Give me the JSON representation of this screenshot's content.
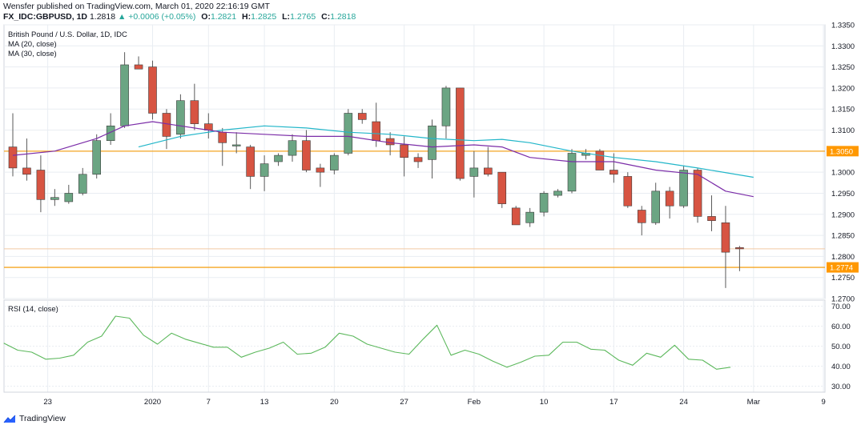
{
  "header": {
    "publisher_line": "Wensfer published on TradingView.com, March 01, 2020 22:16:19 GMT",
    "symbol": "FX_IDC:GBPUSD, 1D",
    "last": "1.2818",
    "change": "▲ +0.0006 (+0.05%)",
    "o_label": "O:",
    "o_val": "1.2821",
    "h_label": "H:",
    "h_val": "1.2825",
    "l_label": "L:",
    "l_val": "1.2765",
    "c_label": "C:",
    "c_val": "1.2818"
  },
  "legend": {
    "title": "British Pound / U.S. Dollar, 1D, IDC",
    "ma20": "MA (20, close)",
    "ma30": "MA (30, close)",
    "rsi": "RSI (14, close)"
  },
  "footer": {
    "brand": "TradingView"
  },
  "colors": {
    "up": "#6ba583",
    "down": "#d75442",
    "ma20": "#7b2da8",
    "ma30": "#22b6c9",
    "rsi": "#5cb85c",
    "level": "#f5a623",
    "label_bg": "#ff9800",
    "grid": "#e9edf2"
  },
  "chart_data": [
    {
      "type": "candlestick",
      "title": "British Pound / U.S. Dollar, 1D, IDC",
      "ylim": [
        1.27,
        1.335
      ],
      "y_ticks": [
        "1.3350",
        "1.3300",
        "1.3250",
        "1.3200",
        "1.3150",
        "1.3100",
        "1.3050",
        "1.3000",
        "1.2950",
        "1.2900",
        "1.2850",
        "1.2800",
        "1.2750",
        "1.2700"
      ],
      "x_ticks": [
        {
          "label": "23",
          "idx": 2.5
        },
        {
          "label": "2020",
          "idx": 10
        },
        {
          "label": "7",
          "idx": 14
        },
        {
          "label": "13",
          "idx": 18
        },
        {
          "label": "20",
          "idx": 23
        },
        {
          "label": "27",
          "idx": 28
        },
        {
          "label": "Feb",
          "idx": 33
        },
        {
          "label": "10",
          "idx": 38
        },
        {
          "label": "17",
          "idx": 43
        },
        {
          "label": "24",
          "idx": 48
        },
        {
          "label": "Mar",
          "idx": 53
        },
        {
          "label": "9",
          "idx": 58
        }
      ],
      "candles": [
        {
          "o": 1.306,
          "h": 1.314,
          "l": 1.299,
          "c": 1.301
        },
        {
          "o": 1.301,
          "h": 1.308,
          "l": 1.298,
          "c": 1.2995
        },
        {
          "o": 1.3005,
          "h": 1.304,
          "l": 1.2905,
          "c": 1.2935
        },
        {
          "o": 1.2935,
          "h": 1.296,
          "l": 1.292,
          "c": 1.294
        },
        {
          "o": 1.293,
          "h": 1.297,
          "l": 1.2925,
          "c": 1.295
        },
        {
          "o": 1.295,
          "h": 1.301,
          "l": 1.2945,
          "c": 1.2995
        },
        {
          "o": 1.2995,
          "h": 1.309,
          "l": 1.2985,
          "c": 1.3075
        },
        {
          "o": 1.3075,
          "h": 1.314,
          "l": 1.3065,
          "c": 1.311
        },
        {
          "o": 1.311,
          "h": 1.3285,
          "l": 1.3105,
          "c": 1.3255
        },
        {
          "o": 1.3255,
          "h": 1.3275,
          "l": 1.3245,
          "c": 1.3245
        },
        {
          "o": 1.325,
          "h": 1.3265,
          "l": 1.3125,
          "c": 1.314
        },
        {
          "o": 1.314,
          "h": 1.315,
          "l": 1.3055,
          "c": 1.3085
        },
        {
          "o": 1.309,
          "h": 1.3185,
          "l": 1.308,
          "c": 1.317
        },
        {
          "o": 1.317,
          "h": 1.321,
          "l": 1.31,
          "c": 1.3115
        },
        {
          "o": 1.3115,
          "h": 1.314,
          "l": 1.308,
          "c": 1.31
        },
        {
          "o": 1.3095,
          "h": 1.3105,
          "l": 1.3015,
          "c": 1.307
        },
        {
          "o": 1.3065,
          "h": 1.3095,
          "l": 1.3045,
          "c": 1.3065
        },
        {
          "o": 1.306,
          "h": 1.3065,
          "l": 1.296,
          "c": 1.299
        },
        {
          "o": 1.299,
          "h": 1.304,
          "l": 1.2955,
          "c": 1.302
        },
        {
          "o": 1.3025,
          "h": 1.3045,
          "l": 1.3015,
          "c": 1.304
        },
        {
          "o": 1.304,
          "h": 1.309,
          "l": 1.3025,
          "c": 1.3075
        },
        {
          "o": 1.3075,
          "h": 1.31,
          "l": 1.3,
          "c": 1.3005
        },
        {
          "o": 1.301,
          "h": 1.302,
          "l": 1.2965,
          "c": 1.3
        },
        {
          "o": 1.3005,
          "h": 1.3045,
          "l": 1.2995,
          "c": 1.304
        },
        {
          "o": 1.3045,
          "h": 1.315,
          "l": 1.304,
          "c": 1.314
        },
        {
          "o": 1.314,
          "h": 1.315,
          "l": 1.3115,
          "c": 1.3125
        },
        {
          "o": 1.312,
          "h": 1.3165,
          "l": 1.306,
          "c": 1.3075
        },
        {
          "o": 1.308,
          "h": 1.3095,
          "l": 1.304,
          "c": 1.3065
        },
        {
          "o": 1.3065,
          "h": 1.3085,
          "l": 1.299,
          "c": 1.3035
        },
        {
          "o": 1.3035,
          "h": 1.3045,
          "l": 1.301,
          "c": 1.3025
        },
        {
          "o": 1.303,
          "h": 1.3125,
          "l": 1.2985,
          "c": 1.311
        },
        {
          "o": 1.311,
          "h": 1.3205,
          "l": 1.308,
          "c": 1.32
        },
        {
          "o": 1.32,
          "h": 1.32,
          "l": 1.298,
          "c": 1.2985
        },
        {
          "o": 1.299,
          "h": 1.305,
          "l": 1.294,
          "c": 1.301
        },
        {
          "o": 1.301,
          "h": 1.306,
          "l": 1.299,
          "c": 1.2995
        },
        {
          "o": 1.3,
          "h": 1.3,
          "l": 1.2915,
          "c": 1.2925
        },
        {
          "o": 1.2915,
          "h": 1.292,
          "l": 1.2875,
          "c": 1.2875
        },
        {
          "o": 1.288,
          "h": 1.2915,
          "l": 1.287,
          "c": 1.2905
        },
        {
          "o": 1.2905,
          "h": 1.2955,
          "l": 1.2895,
          "c": 1.295
        },
        {
          "o": 1.2945,
          "h": 1.296,
          "l": 1.294,
          "c": 1.2955
        },
        {
          "o": 1.2955,
          "h": 1.3055,
          "l": 1.295,
          "c": 1.3045
        },
        {
          "o": 1.304,
          "h": 1.3055,
          "l": 1.303,
          "c": 1.3045
        },
        {
          "o": 1.305,
          "h": 1.3055,
          "l": 1.3005,
          "c": 1.3005
        },
        {
          "o": 1.3005,
          "h": 1.3045,
          "l": 1.2975,
          "c": 1.2995
        },
        {
          "o": 1.299,
          "h": 1.3,
          "l": 1.2915,
          "c": 1.292
        },
        {
          "o": 1.291,
          "h": 1.292,
          "l": 1.285,
          "c": 1.288
        },
        {
          "o": 1.288,
          "h": 1.2975,
          "l": 1.2875,
          "c": 1.2955
        },
        {
          "o": 1.2955,
          "h": 1.2965,
          "l": 1.289,
          "c": 1.292
        },
        {
          "o": 1.292,
          "h": 1.3015,
          "l": 1.2915,
          "c": 1.3005
        },
        {
          "o": 1.3005,
          "h": 1.301,
          "l": 1.288,
          "c": 1.2895
        },
        {
          "o": 1.2895,
          "h": 1.2945,
          "l": 1.286,
          "c": 1.2885
        },
        {
          "o": 1.288,
          "h": 1.292,
          "l": 1.2725,
          "c": 1.281
        },
        {
          "o": 1.2821,
          "h": 1.2825,
          "l": 1.2765,
          "c": 1.2818
        }
      ],
      "ma20": [
        {
          "i": 0,
          "v": 1.304
        },
        {
          "i": 3,
          "v": 1.305
        },
        {
          "i": 6,
          "v": 1.308
        },
        {
          "i": 8,
          "v": 1.311
        },
        {
          "i": 10,
          "v": 1.312
        },
        {
          "i": 12,
          "v": 1.311
        },
        {
          "i": 15,
          "v": 1.3095
        },
        {
          "i": 18,
          "v": 1.309
        },
        {
          "i": 21,
          "v": 1.3085
        },
        {
          "i": 24,
          "v": 1.3085
        },
        {
          "i": 27,
          "v": 1.307
        },
        {
          "i": 30,
          "v": 1.306
        },
        {
          "i": 33,
          "v": 1.3065
        },
        {
          "i": 35,
          "v": 1.306
        },
        {
          "i": 37,
          "v": 1.3035
        },
        {
          "i": 40,
          "v": 1.3025
        },
        {
          "i": 43,
          "v": 1.3025
        },
        {
          "i": 46,
          "v": 1.3005
        },
        {
          "i": 49,
          "v": 1.2995
        },
        {
          "i": 51,
          "v": 1.2955
        },
        {
          "i": 53,
          "v": 1.2942
        }
      ],
      "ma30": [
        {
          "i": 9,
          "v": 1.306
        },
        {
          "i": 12,
          "v": 1.3085
        },
        {
          "i": 15,
          "v": 1.31
        },
        {
          "i": 18,
          "v": 1.311
        },
        {
          "i": 21,
          "v": 1.3105
        },
        {
          "i": 24,
          "v": 1.3095
        },
        {
          "i": 27,
          "v": 1.309
        },
        {
          "i": 30,
          "v": 1.308
        },
        {
          "i": 33,
          "v": 1.3075
        },
        {
          "i": 35,
          "v": 1.3078
        },
        {
          "i": 37,
          "v": 1.307
        },
        {
          "i": 40,
          "v": 1.305
        },
        {
          "i": 43,
          "v": 1.3035
        },
        {
          "i": 46,
          "v": 1.3025
        },
        {
          "i": 49,
          "v": 1.301
        },
        {
          "i": 53,
          "v": 1.2988
        }
      ],
      "levels": [
        {
          "value": 1.305,
          "label": "1.3050"
        },
        {
          "value": 1.2774,
          "label": "1.2774"
        }
      ],
      "last_price_line": 1.2818
    },
    {
      "type": "line",
      "title": "RSI (14, close)",
      "ylim": [
        27.0,
        73.0
      ],
      "y_ticks": [
        "70.00",
        "60.00",
        "50.00",
        "40.00",
        "30.00"
      ],
      "values": [
        51.5,
        48,
        47,
        43.5,
        44,
        45.5,
        52,
        55,
        65,
        64,
        55.5,
        51,
        56.5,
        53.5,
        51.5,
        49.5,
        49.5,
        44.5,
        47,
        49,
        52,
        46,
        46.5,
        49.5,
        56.5,
        55,
        51,
        49,
        47,
        46,
        53.5,
        60.5,
        45.5,
        48,
        46,
        42.5,
        39.5,
        42,
        45,
        45.5,
        52,
        52,
        48.5,
        48,
        43,
        40.5,
        46.5,
        44.5,
        50.5,
        43.5,
        43,
        38.5,
        39.5
      ]
    }
  ]
}
